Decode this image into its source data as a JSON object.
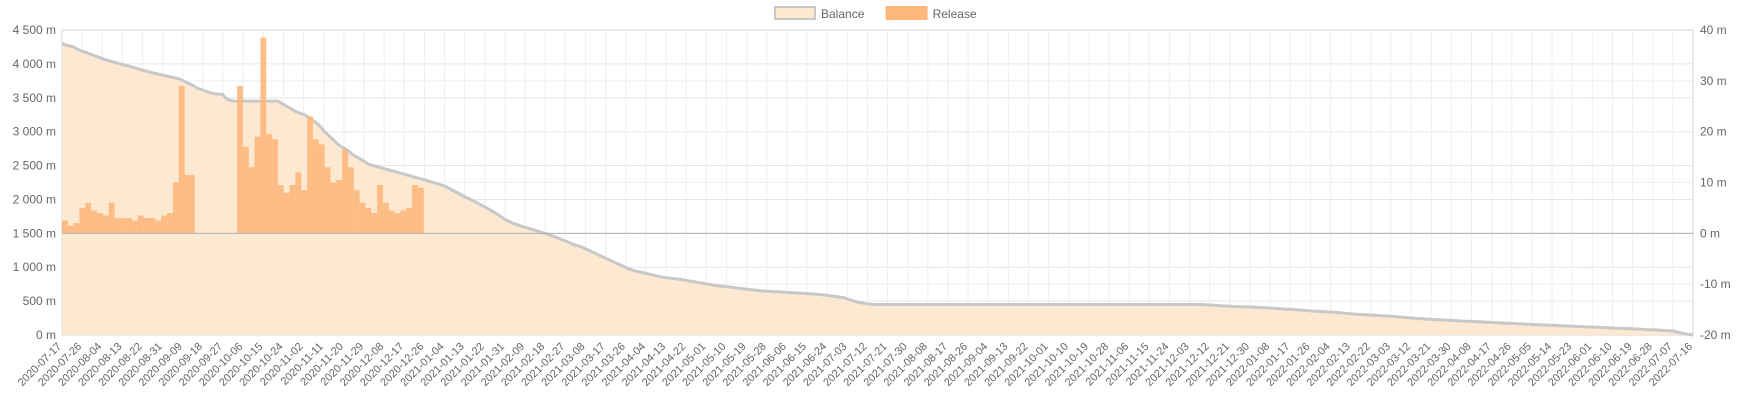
{
  "chart_data": {
    "type": "bar",
    "legend": {
      "placement": "top-center",
      "items": [
        {
          "label": "Balance",
          "color": "#fde8d0",
          "border": "#c8c8c8"
        },
        {
          "label": "Release",
          "color": "#fdb77b",
          "border": "#fdb77b"
        }
      ]
    },
    "x_ticks": [
      "2020-07-17",
      "2020-07-26",
      "2020-08-04",
      "2020-08-13",
      "2020-08-22",
      "2020-08-31",
      "2020-09-09",
      "2020-09-18",
      "2020-09-27",
      "2020-10-06",
      "2020-10-15",
      "2020-10-24",
      "2020-11-02",
      "2020-11-11",
      "2020-11-20",
      "2020-11-29",
      "2020-12-08",
      "2020-12-17",
      "2020-12-26",
      "2021-01-04",
      "2021-01-13",
      "2021-01-22",
      "2021-01-31",
      "2021-02-09",
      "2021-02-18",
      "2021-02-27",
      "2021-03-08",
      "2021-03-17",
      "2021-03-26",
      "2021-04-04",
      "2021-04-13",
      "2021-04-22",
      "2021-05-01",
      "2021-05-10",
      "2021-05-19",
      "2021-05-28",
      "2021-06-06",
      "2021-06-15",
      "2021-06-24",
      "2021-07-03",
      "2021-07-12",
      "2021-07-21",
      "2021-07-30",
      "2021-08-08",
      "2021-08-17",
      "2021-08-26",
      "2021-09-04",
      "2021-09-13",
      "2021-09-22",
      "2021-10-01",
      "2021-10-10",
      "2021-10-19",
      "2021-10-28",
      "2021-11-06",
      "2021-11-15",
      "2021-11-24",
      "2021-12-03",
      "2021-12-12",
      "2021-12-21",
      "2021-12-30",
      "2022-01-08",
      "2022-01-17",
      "2022-01-26",
      "2022-02-04",
      "2022-02-13",
      "2022-02-22",
      "2022-03-03",
      "2022-03-12",
      "2022-03-21",
      "2022-03-30",
      "2022-04-08",
      "2022-04-17",
      "2022-04-26",
      "2022-05-05",
      "2022-05-14",
      "2022-05-23",
      "2022-06-01",
      "2022-06-10",
      "2022-06-19",
      "2022-06-28",
      "2022-07-07",
      "2022-07-16"
    ],
    "y_left": {
      "min": 0,
      "max": 4500,
      "step": 500,
      "ticks": [
        "0 m",
        "500 m",
        "1 000 m",
        "1 500 m",
        "2 000 m",
        "2 500 m",
        "3 000 m",
        "3 500 m",
        "4 000 m",
        "4 500 m"
      ]
    },
    "y_right": {
      "min": -20,
      "max": 40,
      "step": 10,
      "ticks": [
        "-20 m",
        "-10 m",
        "0 m",
        "10 m",
        "20 m",
        "30 m",
        "40 m"
      ]
    },
    "grid": true,
    "series": [
      {
        "name": "Balance",
        "type": "area",
        "axis": "left",
        "points": [
          [
            0,
            4300
          ],
          [
            4,
            4270
          ],
          [
            8,
            4250
          ],
          [
            10,
            4220
          ],
          [
            15,
            4180
          ],
          [
            20,
            4140
          ],
          [
            25,
            4100
          ],
          [
            30,
            4060
          ],
          [
            40,
            4000
          ],
          [
            50,
            3940
          ],
          [
            60,
            3880
          ],
          [
            70,
            3830
          ],
          [
            80,
            3780
          ],
          [
            85,
            3730
          ],
          [
            90,
            3680
          ],
          [
            92,
            3650
          ],
          [
            98,
            3600
          ],
          [
            104,
            3560
          ],
          [
            110,
            3550
          ],
          [
            112,
            3500
          ],
          [
            114,
            3470
          ],
          [
            118,
            3450
          ],
          [
            128,
            3450
          ],
          [
            138,
            3450
          ],
          [
            148,
            3450
          ],
          [
            152,
            3400
          ],
          [
            156,
            3350
          ],
          [
            160,
            3300
          ],
          [
            166,
            3250
          ],
          [
            170,
            3200
          ],
          [
            176,
            3100
          ],
          [
            180,
            3000
          ],
          [
            186,
            2880
          ],
          [
            190,
            2800
          ],
          [
            196,
            2720
          ],
          [
            200,
            2650
          ],
          [
            206,
            2580
          ],
          [
            210,
            2520
          ],
          [
            220,
            2460
          ],
          [
            230,
            2400
          ],
          [
            240,
            2340
          ],
          [
            250,
            2280
          ],
          [
            256,
            2240
          ],
          [
            262,
            2200
          ],
          [
            270,
            2110
          ],
          [
            276,
            2040
          ],
          [
            282,
            1980
          ],
          [
            288,
            1910
          ],
          [
            294,
            1840
          ],
          [
            300,
            1760
          ],
          [
            304,
            1700
          ],
          [
            310,
            1640
          ],
          [
            316,
            1600
          ],
          [
            322,
            1560
          ],
          [
            328,
            1520
          ],
          [
            334,
            1480
          ],
          [
            340,
            1430
          ],
          [
            346,
            1380
          ],
          [
            350,
            1340
          ],
          [
            356,
            1300
          ],
          [
            360,
            1260
          ],
          [
            364,
            1220
          ],
          [
            368,
            1180
          ],
          [
            372,
            1140
          ],
          [
            376,
            1100
          ],
          [
            380,
            1060
          ],
          [
            384,
            1020
          ],
          [
            388,
            980
          ],
          [
            392,
            950
          ],
          [
            398,
            920
          ],
          [
            404,
            890
          ],
          [
            410,
            860
          ],
          [
            416,
            840
          ],
          [
            424,
            820
          ],
          [
            432,
            790
          ],
          [
            440,
            760
          ],
          [
            448,
            730
          ],
          [
            456,
            710
          ],
          [
            464,
            690
          ],
          [
            472,
            670
          ],
          [
            480,
            650
          ],
          [
            488,
            640
          ],
          [
            496,
            630
          ],
          [
            504,
            620
          ],
          [
            512,
            610
          ],
          [
            520,
            595
          ],
          [
            528,
            575
          ],
          [
            536,
            550
          ],
          [
            540,
            520
          ],
          [
            546,
            480
          ],
          [
            552,
            460
          ],
          [
            556,
            450
          ],
          [
            582,
            450
          ],
          [
            600,
            450
          ],
          [
            640,
            450
          ],
          [
            680,
            450
          ],
          [
            720,
            450
          ],
          [
            740,
            450
          ],
          [
            760,
            450
          ],
          [
            776,
            450
          ],
          [
            781,
            450
          ],
          [
            788,
            440
          ],
          [
            796,
            430
          ],
          [
            804,
            420
          ],
          [
            812,
            415
          ],
          [
            818,
            410
          ],
          [
            826,
            400
          ],
          [
            834,
            390
          ],
          [
            840,
            380
          ],
          [
            848,
            370
          ],
          [
            856,
            355
          ],
          [
            864,
            345
          ],
          [
            872,
            335
          ],
          [
            880,
            320
          ],
          [
            888,
            305
          ],
          [
            896,
            295
          ],
          [
            904,
            285
          ],
          [
            912,
            275
          ],
          [
            920,
            260
          ],
          [
            928,
            245
          ],
          [
            936,
            235
          ],
          [
            944,
            225
          ],
          [
            952,
            215
          ],
          [
            960,
            205
          ],
          [
            968,
            200
          ],
          [
            976,
            190
          ],
          [
            984,
            180
          ],
          [
            992,
            172
          ],
          [
            1000,
            165
          ],
          [
            1008,
            155
          ],
          [
            1016,
            148
          ],
          [
            1024,
            140
          ],
          [
            1032,
            132
          ],
          [
            1040,
            125
          ],
          [
            1048,
            118
          ],
          [
            1056,
            110
          ],
          [
            1064,
            102
          ],
          [
            1072,
            95
          ],
          [
            1080,
            88
          ],
          [
            1086,
            80
          ],
          [
            1092,
            75
          ],
          [
            1096,
            70
          ],
          [
            1100,
            65
          ],
          [
            1104,
            60
          ],
          [
            1106,
            50
          ],
          [
            1108,
            40
          ],
          [
            1110,
            30
          ],
          [
            1112,
            20
          ],
          [
            1114,
            10
          ],
          [
            1116,
            5
          ],
          [
            1118,
            0
          ]
        ]
      },
      {
        "name": "Release",
        "type": "bar",
        "axis": "right",
        "values": [
          {
            "range": [
              0,
              4
            ],
            "h": 2.5
          },
          {
            "range": [
              4,
              8
            ],
            "h": 1.5
          },
          {
            "range": [
              8,
              12
            ],
            "h": 2.0
          },
          {
            "range": [
              12,
              16
            ],
            "h": 5.0
          },
          {
            "range": [
              16,
              20
            ],
            "h": 6.0
          },
          {
            "range": [
              20,
              24
            ],
            "h": 4.5
          },
          {
            "range": [
              24,
              28
            ],
            "h": 4.0
          },
          {
            "range": [
              28,
              32
            ],
            "h": 3.5
          },
          {
            "range": [
              32,
              36
            ],
            "h": 6.0
          },
          {
            "range": [
              36,
              40
            ],
            "h": 3.0
          },
          {
            "range": [
              40,
              44
            ],
            "h": 3.0
          },
          {
            "range": [
              44,
              48
            ],
            "h": 3.0
          },
          {
            "range": [
              48,
              52
            ],
            "h": 2.5
          },
          {
            "range": [
              52,
              56
            ],
            "h": 3.5
          },
          {
            "range": [
              56,
              60
            ],
            "h": 3.0
          },
          {
            "range": [
              60,
              64
            ],
            "h": 3.0
          },
          {
            "range": [
              64,
              68
            ],
            "h": 2.5
          },
          {
            "range": [
              68,
              72
            ],
            "h": 3.5
          },
          {
            "range": [
              72,
              76
            ],
            "h": 4.0
          },
          {
            "range": [
              76,
              80
            ],
            "h": 10.0
          },
          {
            "range": [
              80,
              84
            ],
            "h": 29.0
          },
          {
            "range": [
              84,
              88
            ],
            "h": 11.5
          },
          {
            "range": [
              88,
              91
            ],
            "h": 11.5
          },
          {
            "range": [
              120,
              124
            ],
            "h": 29.0
          },
          {
            "range": [
              124,
              128
            ],
            "h": 17.0
          },
          {
            "range": [
              128,
              132
            ],
            "h": 13.0
          },
          {
            "range": [
              132,
              136
            ],
            "h": 19.0
          },
          {
            "range": [
              136,
              140
            ],
            "h": 38.5
          },
          {
            "range": [
              140,
              144
            ],
            "h": 19.5
          },
          {
            "range": [
              144,
              148
            ],
            "h": 18.5
          },
          {
            "range": [
              148,
              152
            ],
            "h": 9.5
          },
          {
            "range": [
              152,
              156
            ],
            "h": 8.0
          },
          {
            "range": [
              156,
              160
            ],
            "h": 9.5
          },
          {
            "range": [
              160,
              164
            ],
            "h": 12.0
          },
          {
            "range": [
              164,
              168
            ],
            "h": 8.5
          },
          {
            "range": [
              168,
              172
            ],
            "h": 23.0
          },
          {
            "range": [
              172,
              176
            ],
            "h": 18.5
          },
          {
            "range": [
              176,
              180
            ],
            "h": 17.5
          },
          {
            "range": [
              180,
              184
            ],
            "h": 13.0
          },
          {
            "range": [
              184,
              188
            ],
            "h": 10.0
          },
          {
            "range": [
              188,
              192
            ],
            "h": 10.5
          },
          {
            "range": [
              192,
              196
            ],
            "h": 16.5
          },
          {
            "range": [
              196,
              200
            ],
            "h": 13.0
          },
          {
            "range": [
              200,
              204
            ],
            "h": 8.5
          },
          {
            "range": [
              204,
              208
            ],
            "h": 6.0
          },
          {
            "range": [
              208,
              212
            ],
            "h": 5.0
          },
          {
            "range": [
              212,
              216
            ],
            "h": 4.0
          },
          {
            "range": [
              216,
              220
            ],
            "h": 9.5
          },
          {
            "range": [
              220,
              224
            ],
            "h": 6.0
          },
          {
            "range": [
              224,
              228
            ],
            "h": 4.5
          },
          {
            "range": [
              228,
              232
            ],
            "h": 4.0
          },
          {
            "range": [
              232,
              236
            ],
            "h": 4.5
          },
          {
            "range": [
              236,
              240
            ],
            "h": 5.0
          },
          {
            "range": [
              240,
              244
            ],
            "h": 9.5
          },
          {
            "range": [
              244,
              248
            ],
            "h": 9.0
          }
        ]
      }
    ]
  }
}
